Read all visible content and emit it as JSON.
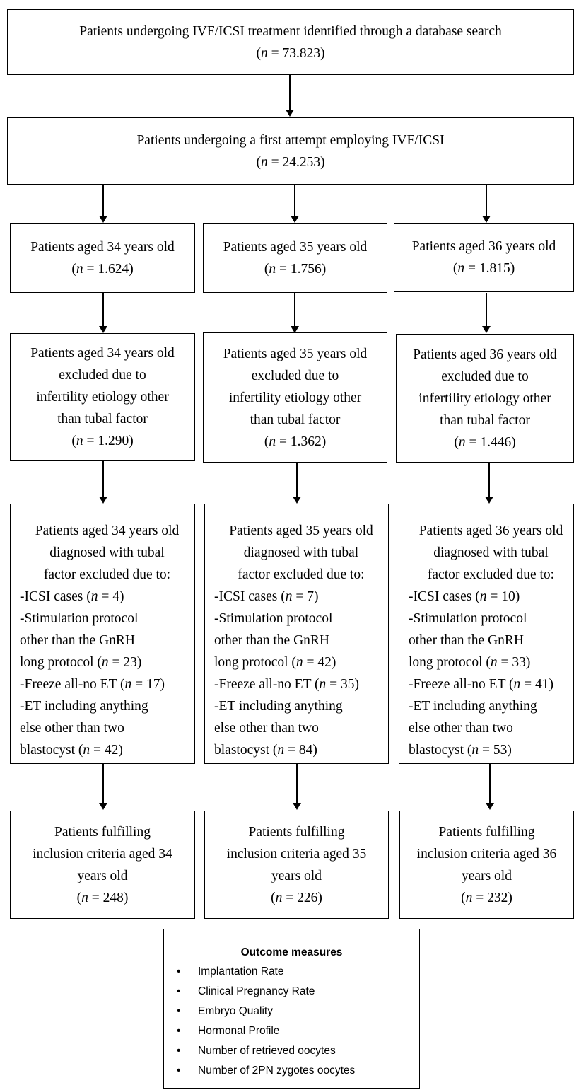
{
  "boxes": {
    "search": {
      "text": "Patients undergoing IVF/ICSI treatment identified through a database search",
      "n": "73.823"
    },
    "first_attempt": {
      "text": "Patients undergoing a first attempt employing IVF/ICSI",
      "n": "24.253"
    },
    "columns": [
      {
        "aged": {
          "text": "Patients aged 34 years old",
          "n": "1.624"
        },
        "excluded_etiology": {
          "lines": [
            "Patients aged 34 years old",
            "excluded due to",
            "infertility etiology other",
            "than tubal factor"
          ],
          "n": "1.290"
        },
        "excluded_tubal": {
          "header": [
            "Patients aged 34 years old",
            "diagnosed with tubal",
            "factor excluded due to:"
          ],
          "icsi": "-ICSI cases",
          "icsi_n": "4",
          "stim1": "-Stimulation protocol",
          "stim2": "other than the GnRH",
          "stim3": "long protocol",
          "stim_n": "23",
          "freeze": "-Freeze all-no ET",
          "freeze_n": "17",
          "et1": "-ET including anything",
          "et2": "else other than two",
          "et3": "blastocyst",
          "et_n": "42"
        },
        "included": {
          "lines": [
            "Patients fulfilling",
            "inclusion criteria aged 34",
            "years old"
          ],
          "n": "248"
        }
      },
      {
        "aged": {
          "text": "Patients aged 35 years old",
          "n": "1.756"
        },
        "excluded_etiology": {
          "lines": [
            "Patients aged 35 years old",
            "excluded due to",
            "infertility etiology other",
            "than tubal factor"
          ],
          "n": "1.362"
        },
        "excluded_tubal": {
          "header": [
            "Patients aged 35 years old",
            "diagnosed with tubal",
            "factor excluded due to:"
          ],
          "icsi": "-ICSI cases",
          "icsi_n": "7",
          "stim1": "-Stimulation protocol",
          "stim2": "other than the GnRH",
          "stim3": "long protocol",
          "stim_n": "42",
          "freeze": "-Freeze all-no ET",
          "freeze_n": "35",
          "et1": "-ET including anything",
          "et2": "else other than two",
          "et3": "blastocyst",
          "et_n": "84"
        },
        "included": {
          "lines": [
            "Patients fulfilling",
            "inclusion criteria aged 35",
            "years old"
          ],
          "n": "226"
        }
      },
      {
        "aged": {
          "text": "Patients aged 36 years old",
          "n": "1.815"
        },
        "excluded_etiology": {
          "lines": [
            "Patients aged 36 years old",
            "excluded due to",
            "infertility etiology other",
            "than tubal factor"
          ],
          "n": "1.446"
        },
        "excluded_tubal": {
          "header": [
            "Patients aged 36 years old",
            "diagnosed with tubal",
            "factor excluded due to:"
          ],
          "icsi": "-ICSI cases",
          "icsi_n": "10",
          "stim1": "-Stimulation protocol",
          "stim2": "other than the GnRH",
          "stim3": "long protocol",
          "stim_n": "33",
          "freeze": "-Freeze all-no ET",
          "freeze_n": "41",
          "et1": "-ET including anything",
          "et2": "else other than two",
          "et3": "blastocyst",
          "et_n": "53"
        },
        "included": {
          "lines": [
            "Patients fulfilling",
            "inclusion criteria aged 36",
            "years old"
          ],
          "n": "232"
        }
      }
    ]
  },
  "n_label": "n",
  "outcome": {
    "title": "Outcome measures",
    "items": [
      "Implantation Rate",
      "Clinical Pregnancy Rate",
      "Embryo Quality",
      "Hormonal Profile",
      "Number of retrieved oocytes",
      "Number of 2PN zygotes oocytes"
    ]
  }
}
